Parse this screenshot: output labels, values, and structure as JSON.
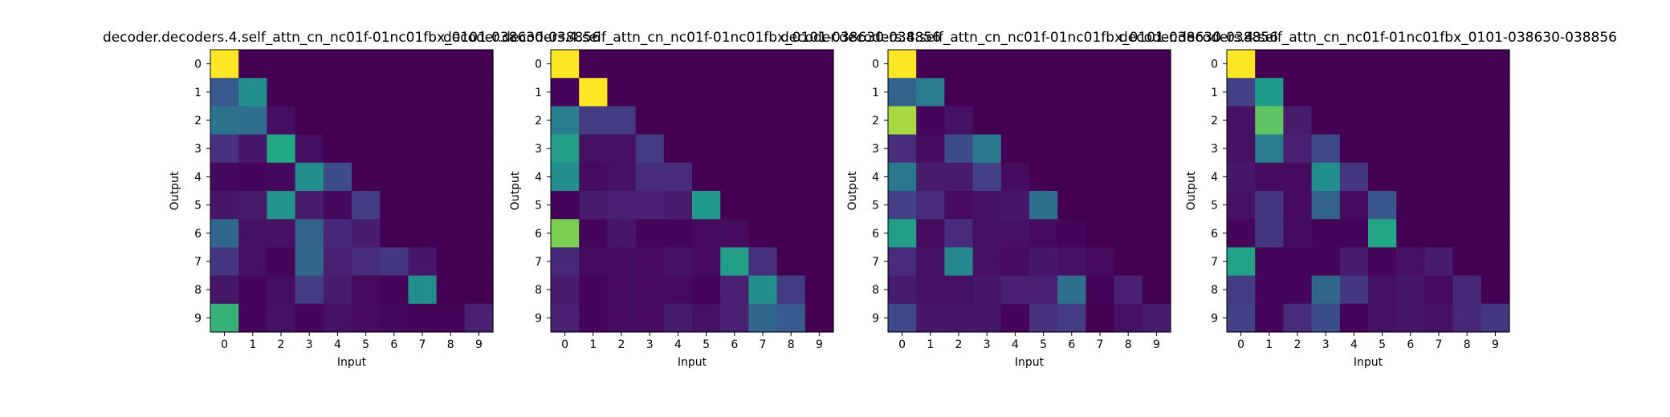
{
  "chart_data": [
    {
      "type": "heatmap",
      "title": "decoder.decoders.4.self_attn_cn_nc01f-01nc01fbx_0101-038630-038856",
      "xlabel": "Input",
      "ylabel": "Output",
      "x_ticks": [
        "0",
        "1",
        "2",
        "3",
        "4",
        "5",
        "6",
        "7",
        "8",
        "9"
      ],
      "y_ticks": [
        "0",
        "1",
        "2",
        "3",
        "4",
        "5",
        "6",
        "7",
        "8",
        "9"
      ],
      "colormap": "viridis",
      "vlim": [
        0,
        1
      ],
      "values": [
        [
          1.0,
          0.0,
          0.0,
          0.0,
          0.0,
          0.0,
          0.0,
          0.0,
          0.0,
          0.0
        ],
        [
          0.35,
          0.62,
          0.0,
          0.0,
          0.0,
          0.0,
          0.0,
          0.0,
          0.0,
          0.0
        ],
        [
          0.48,
          0.45,
          0.05,
          0.0,
          0.0,
          0.0,
          0.0,
          0.0,
          0.0,
          0.0
        ],
        [
          0.18,
          0.08,
          0.75,
          0.05,
          0.0,
          0.0,
          0.0,
          0.0,
          0.0,
          0.0
        ],
        [
          0.03,
          0.02,
          0.03,
          0.62,
          0.3,
          0.0,
          0.0,
          0.0,
          0.0,
          0.0
        ],
        [
          0.08,
          0.1,
          0.65,
          0.1,
          0.03,
          0.22,
          0.0,
          0.0,
          0.0,
          0.0
        ],
        [
          0.42,
          0.06,
          0.06,
          0.4,
          0.14,
          0.1,
          0.0,
          0.0,
          0.0,
          0.0
        ],
        [
          0.2,
          0.06,
          0.02,
          0.42,
          0.12,
          0.16,
          0.2,
          0.08,
          0.0,
          0.0
        ],
        [
          0.08,
          0.01,
          0.05,
          0.22,
          0.1,
          0.04,
          0.02,
          0.62,
          0.0,
          0.0
        ],
        [
          0.78,
          0.02,
          0.06,
          0.02,
          0.06,
          0.04,
          0.03,
          0.02,
          0.02,
          0.12
        ]
      ]
    },
    {
      "type": "heatmap",
      "title": "decoder.decoders.4.self_attn_cn_nc01f-01nc01fbx_0101-038630-038856",
      "xlabel": "Input",
      "ylabel": "Output",
      "x_ticks": [
        "0",
        "1",
        "2",
        "3",
        "4",
        "5",
        "6",
        "7",
        "8",
        "9"
      ],
      "y_ticks": [
        "0",
        "1",
        "2",
        "3",
        "4",
        "5",
        "6",
        "7",
        "8",
        "9"
      ],
      "colormap": "viridis",
      "vlim": [
        0,
        1
      ],
      "values": [
        [
          1.0,
          0.0,
          0.0,
          0.0,
          0.0,
          0.0,
          0.0,
          0.0,
          0.0,
          0.0
        ],
        [
          0.02,
          1.0,
          0.0,
          0.0,
          0.0,
          0.0,
          0.0,
          0.0,
          0.0,
          0.0
        ],
        [
          0.52,
          0.22,
          0.22,
          0.0,
          0.0,
          0.0,
          0.0,
          0.0,
          0.0,
          0.0
        ],
        [
          0.7,
          0.06,
          0.06,
          0.22,
          0.0,
          0.0,
          0.0,
          0.0,
          0.0,
          0.0
        ],
        [
          0.62,
          0.04,
          0.06,
          0.16,
          0.16,
          0.0,
          0.0,
          0.0,
          0.0,
          0.0
        ],
        [
          0.02,
          0.1,
          0.12,
          0.12,
          0.1,
          0.68,
          0.0,
          0.0,
          0.0,
          0.0
        ],
        [
          0.88,
          0.02,
          0.08,
          0.02,
          0.02,
          0.04,
          0.04,
          0.0,
          0.0,
          0.0
        ],
        [
          0.14,
          0.04,
          0.04,
          0.04,
          0.06,
          0.04,
          0.7,
          0.18,
          0.0,
          0.0
        ],
        [
          0.1,
          0.02,
          0.04,
          0.04,
          0.04,
          0.02,
          0.12,
          0.62,
          0.22,
          0.0
        ],
        [
          0.12,
          0.02,
          0.04,
          0.04,
          0.1,
          0.06,
          0.12,
          0.42,
          0.36,
          0.0
        ]
      ]
    },
    {
      "type": "heatmap",
      "title": "decoder.decoders.4.self_attn_cn_nc01f-01nc01fbx_0101-038630-038856",
      "xlabel": "Input",
      "ylabel": "Output",
      "x_ticks": [
        "0",
        "1",
        "2",
        "3",
        "4",
        "5",
        "6",
        "7",
        "8",
        "9"
      ],
      "y_ticks": [
        "0",
        "1",
        "2",
        "3",
        "4",
        "5",
        "6",
        "7",
        "8",
        "9"
      ],
      "colormap": "viridis",
      "vlim": [
        0,
        1
      ],
      "values": [
        [
          1.0,
          0.0,
          0.0,
          0.0,
          0.0,
          0.0,
          0.0,
          0.0,
          0.0,
          0.0
        ],
        [
          0.4,
          0.52,
          0.0,
          0.0,
          0.0,
          0.0,
          0.0,
          0.0,
          0.0,
          0.0
        ],
        [
          0.92,
          0.02,
          0.06,
          0.0,
          0.0,
          0.0,
          0.0,
          0.0,
          0.0,
          0.0
        ],
        [
          0.16,
          0.04,
          0.3,
          0.5,
          0.0,
          0.0,
          0.0,
          0.0,
          0.0,
          0.0
        ],
        [
          0.5,
          0.1,
          0.1,
          0.24,
          0.04,
          0.0,
          0.0,
          0.0,
          0.0,
          0.0
        ],
        [
          0.24,
          0.16,
          0.04,
          0.06,
          0.08,
          0.46,
          0.0,
          0.0,
          0.0,
          0.0
        ],
        [
          0.7,
          0.04,
          0.16,
          0.06,
          0.06,
          0.04,
          0.02,
          0.0,
          0.0,
          0.0
        ],
        [
          0.16,
          0.06,
          0.58,
          0.06,
          0.04,
          0.08,
          0.06,
          0.04,
          0.0,
          0.0
        ],
        [
          0.1,
          0.06,
          0.06,
          0.08,
          0.12,
          0.12,
          0.46,
          0.02,
          0.12,
          0.0
        ],
        [
          0.28,
          0.08,
          0.08,
          0.08,
          0.02,
          0.18,
          0.22,
          0.0,
          0.06,
          0.1
        ]
      ]
    },
    {
      "type": "heatmap",
      "title": "decoder.decoders.4.self_attn_cn_nc01f-01nc01fbx_0101-038630-038856",
      "xlabel": "Input",
      "ylabel": "Output",
      "x_ticks": [
        "0",
        "1",
        "2",
        "3",
        "4",
        "5",
        "6",
        "7",
        "8",
        "9"
      ],
      "y_ticks": [
        "0",
        "1",
        "2",
        "3",
        "4",
        "5",
        "6",
        "7",
        "8",
        "9"
      ],
      "colormap": "viridis",
      "vlim": [
        0,
        1
      ],
      "values": [
        [
          1.0,
          0.0,
          0.0,
          0.0,
          0.0,
          0.0,
          0.0,
          0.0,
          0.0,
          0.0
        ],
        [
          0.24,
          0.68,
          0.0,
          0.0,
          0.0,
          0.0,
          0.0,
          0.0,
          0.0,
          0.0
        ],
        [
          0.06,
          0.84,
          0.1,
          0.0,
          0.0,
          0.0,
          0.0,
          0.0,
          0.0,
          0.0
        ],
        [
          0.06,
          0.52,
          0.12,
          0.28,
          0.0,
          0.0,
          0.0,
          0.0,
          0.0,
          0.0
        ],
        [
          0.08,
          0.04,
          0.04,
          0.62,
          0.2,
          0.0,
          0.0,
          0.0,
          0.0,
          0.0
        ],
        [
          0.06,
          0.2,
          0.04,
          0.4,
          0.04,
          0.34,
          0.0,
          0.0,
          0.0,
          0.0
        ],
        [
          0.02,
          0.2,
          0.04,
          0.02,
          0.02,
          0.74,
          0.0,
          0.0,
          0.0,
          0.0
        ],
        [
          0.72,
          0.02,
          0.02,
          0.02,
          0.1,
          0.02,
          0.06,
          0.1,
          0.0,
          0.0
        ],
        [
          0.22,
          0.02,
          0.02,
          0.42,
          0.2,
          0.06,
          0.08,
          0.04,
          0.14,
          0.0
        ],
        [
          0.24,
          0.02,
          0.16,
          0.3,
          0.02,
          0.06,
          0.08,
          0.06,
          0.14,
          0.2
        ]
      ]
    }
  ]
}
